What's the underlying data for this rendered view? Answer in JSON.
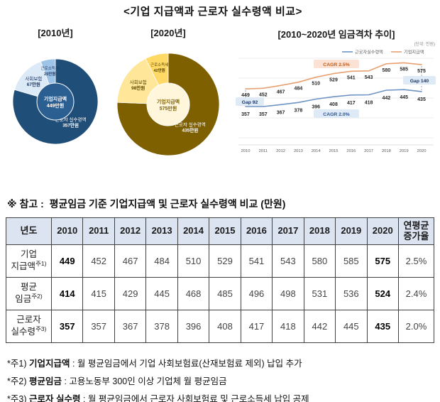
{
  "title": "<기업 지급액과 근로자 실수령액 비교>",
  "chart_data": [
    {
      "type": "pie",
      "title": "[2010년]",
      "donut": true,
      "center_label": "기업지급액",
      "center_value": "449만원",
      "center_color": "#2B5E91",
      "center_text_color": "#FFFFFF",
      "slices": [
        {
          "label": "근로자 실수령액",
          "value": 357,
          "value_label": "357만원",
          "color": "#1F4E79",
          "text_color": "#FFFFFF"
        },
        {
          "label": "사회보험",
          "value": 67,
          "value_label": "67만원",
          "color": "#DCE9F6",
          "text_color": "#1F3864"
        },
        {
          "label": "근로소득세",
          "value": 25,
          "value_label": "25만원",
          "color": "#9DC3E6",
          "text_color": "#1F3864"
        }
      ]
    },
    {
      "type": "pie",
      "title": "[2020년]",
      "donut": true,
      "center_label": "기업지급액",
      "center_value": "575만원",
      "center_color": "#FFF6DC",
      "center_text_color": "#7F6000",
      "slices": [
        {
          "label": "근로자 실수령액",
          "value": 435,
          "value_label": "435만원",
          "color": "#7F6000",
          "text_color": "#FFFFFF"
        },
        {
          "label": "사회보험",
          "value": 98,
          "value_label": "98만원",
          "color": "#FFE699",
          "text_color": "#5A4500"
        },
        {
          "label": "근로소득세",
          "value": 42,
          "value_label": "42만원",
          "color": "#FFD966",
          "text_color": "#5A4500"
        }
      ]
    },
    {
      "type": "line",
      "title": "[2010~2020년 임금격차 추이]",
      "unit_label": "(단위: 만원)",
      "x": [
        2010,
        2011,
        2012,
        2013,
        2014,
        2015,
        2016,
        2017,
        2018,
        2019,
        2020
      ],
      "series": [
        {
          "name": "근로자실수령액",
          "color": "#6E94C4",
          "values": [
            357,
            357,
            367,
            378,
            396,
            408,
            417,
            418,
            442,
            445,
            435
          ]
        },
        {
          "name": "기업지급액",
          "color": "#E8A070",
          "values": [
            449,
            452,
            467,
            484,
            510,
            529,
            541,
            543,
            580,
            585,
            575
          ]
        }
      ],
      "annotations": {
        "cagr_top": "CAGR 2.5%",
        "cagr_bottom": "CAGR 2.0%",
        "gap_left": "Gap 92",
        "gap_right": "Gap 140"
      },
      "ylim": [
        300,
        650
      ],
      "grid": true,
      "legend_position": "top-right"
    }
  ],
  "reference": {
    "heading": "※ 참고 :  평균임금 기준 기업지급액 및 근로자 실수령액 비교 (만원)",
    "table": {
      "columns": [
        "년도",
        "2010",
        "2011",
        "2012",
        "2013",
        "2014",
        "2015",
        "2016",
        "2017",
        "2018",
        "2019",
        "2020",
        "연평균\n증가율"
      ],
      "rows": [
        {
          "label": "기업\n지급액",
          "note": "주1)",
          "values": [
            449,
            452,
            467,
            484,
            510,
            529,
            541,
            543,
            580,
            585,
            575
          ],
          "cagr": "2.5%"
        },
        {
          "label": "평균\n임금",
          "note": "주2)",
          "values": [
            414,
            415,
            429,
            445,
            468,
            485,
            496,
            498,
            531,
            536,
            524
          ],
          "cagr": "2.4%"
        },
        {
          "label": "근로자\n실수령",
          "note": "주3)",
          "values": [
            357,
            357,
            367,
            378,
            396,
            408,
            417,
            418,
            442,
            445,
            435
          ],
          "cagr": "2.0%"
        }
      ]
    }
  },
  "footnotes": [
    {
      "marker": "*주1)",
      "term": "기업지급액",
      "text": " : 월 평균임금에서 기업 사회보험료(산재보험료 제외) 납입 추가"
    },
    {
      "marker": "*주2)",
      "term": "평균임금",
      "text": " : 고용노동부 300인 이상 기업체 월 평균임금"
    },
    {
      "marker": "*주3)",
      "term": "근로자 실수령",
      "text": " : 월 평균임금에서 근로자 사회보험료 및 근로소득세 납입 공제"
    }
  ]
}
